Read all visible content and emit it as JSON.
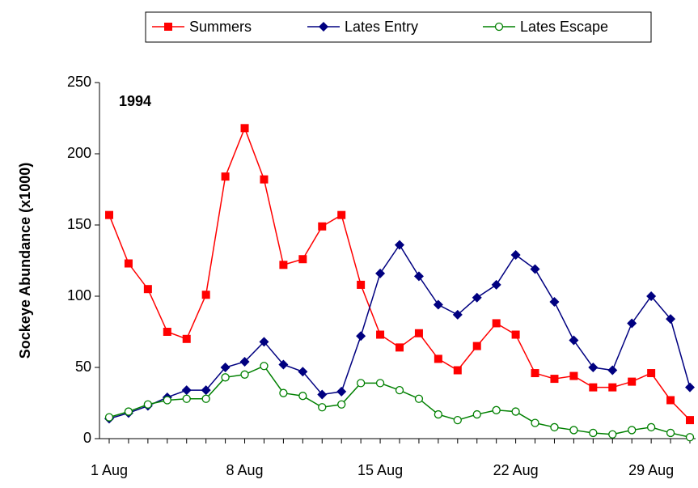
{
  "chart_data": {
    "type": "line",
    "annotation": "1994",
    "y_label": "Sockeye Abundance (x1000)",
    "categories": [
      "1 Aug",
      null,
      null,
      null,
      null,
      null,
      null,
      "8 Aug",
      null,
      null,
      null,
      null,
      null,
      null,
      "15 Aug",
      null,
      null,
      null,
      null,
      null,
      null,
      "22 Aug",
      null,
      null,
      null,
      null,
      null,
      null,
      "29 Aug",
      null,
      null
    ],
    "series": [
      {
        "name": "Summers",
        "color": "#ff0000",
        "marker": "square",
        "values": [
          157,
          123,
          105,
          75,
          70,
          101,
          184,
          218,
          182,
          122,
          126,
          149,
          157,
          108,
          73,
          64,
          74,
          56,
          48,
          65,
          81,
          73,
          46,
          42,
          44,
          36,
          36,
          40,
          46,
          27,
          13
        ]
      },
      {
        "name": "Lates Entry",
        "color": "#000080",
        "marker": "diamond",
        "values": [
          14,
          18,
          23,
          29,
          34,
          34,
          50,
          54,
          68,
          52,
          47,
          31,
          33,
          72,
          116,
          136,
          114,
          94,
          87,
          99,
          108,
          129,
          119,
          96,
          69,
          50,
          48,
          81,
          100,
          84,
          36
        ]
      },
      {
        "name": "Lates Escape",
        "color": "#008000",
        "marker": "circle",
        "values": [
          15,
          19,
          24,
          27,
          28,
          28,
          43,
          45,
          51,
          32,
          30,
          22,
          24,
          39,
          39,
          34,
          28,
          17,
          13,
          17,
          20,
          19,
          11,
          8,
          6,
          4,
          3,
          6,
          8,
          4,
          1
        ]
      }
    ],
    "ylim": [
      0,
      250
    ],
    "yticks": [
      0,
      50,
      100,
      150,
      200,
      250
    ],
    "grid": false,
    "legend": "top"
  }
}
